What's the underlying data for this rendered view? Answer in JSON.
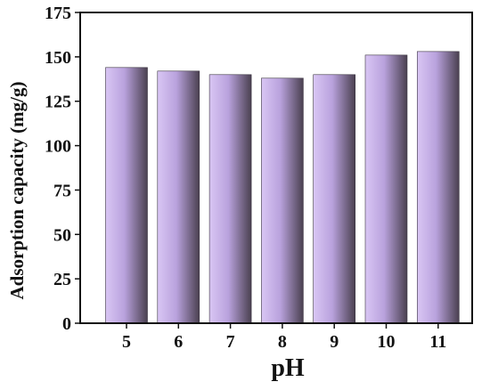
{
  "chart_data": {
    "type": "bar",
    "title": "",
    "xlabel": "pH",
    "ylabel": "Adsorption capacity (mg/g)",
    "categories": [
      "5",
      "6",
      "7",
      "8",
      "9",
      "10",
      "11"
    ],
    "values": [
      144,
      142,
      140,
      138,
      140,
      151,
      153
    ],
    "ylim": [
      0,
      175
    ],
    "yticks": [
      0,
      25,
      50,
      75,
      100,
      125,
      150,
      175
    ],
    "grid": false,
    "legend": "none",
    "colors": {
      "bar_light": "#d9c6f4",
      "bar_mid": "#b9a2dd",
      "bar_dark": "#4a4050",
      "axis": "#111111"
    }
  }
}
